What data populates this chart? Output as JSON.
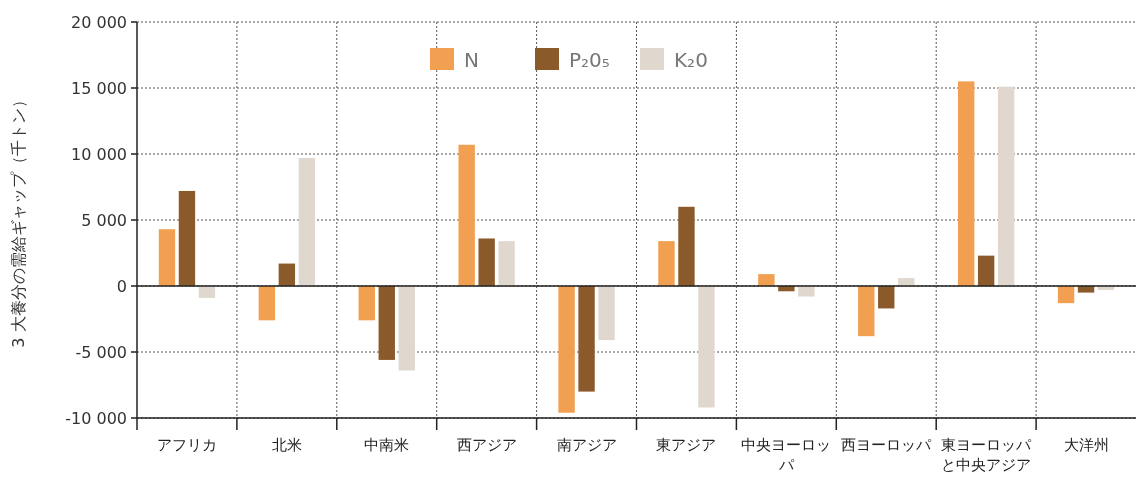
{
  "chart_data": {
    "type": "bar",
    "ylabel": "3 大養分の需給ギャップ（千トン）",
    "categories": [
      "アフリカ",
      "北米",
      "中南米",
      "西アジア",
      "南アジア",
      "東アジア",
      "中央ヨーロッパ",
      "西ヨーロッパ",
      "東ヨーロッパと中央アジア",
      "大洋州"
    ],
    "series": [
      {
        "name": "N",
        "color": "#f0a050",
        "values": [
          4300,
          -2600,
          -2600,
          10700,
          -9600,
          3400,
          900,
          -3800,
          15500,
          -1300
        ]
      },
      {
        "name": "P₂0₅",
        "color": "#8b5a2b",
        "values": [
          7200,
          1700,
          -5600,
          3600,
          -8000,
          6000,
          -400,
          -1700,
          2300,
          -500
        ]
      },
      {
        "name": "K₂0",
        "color": "#e0d8cf",
        "values": [
          -900,
          9700,
          -6400,
          3400,
          -4100,
          -9200,
          -800,
          600,
          15100,
          -300
        ]
      }
    ],
    "ylim": [
      -10000,
      20000
    ],
    "yticks": [
      {
        "value": -10000,
        "label": "-10 000"
      },
      {
        "value": -5000,
        "label": "-5 000"
      },
      0,
      {
        "value": 5000,
        "label": "5 000"
      },
      {
        "value": 10000,
        "label": "10 000"
      },
      {
        "value": 15000,
        "label": "15 000"
      },
      {
        "value": 20000,
        "label": "20 000"
      }
    ],
    "grid": true,
    "legend": "top"
  }
}
